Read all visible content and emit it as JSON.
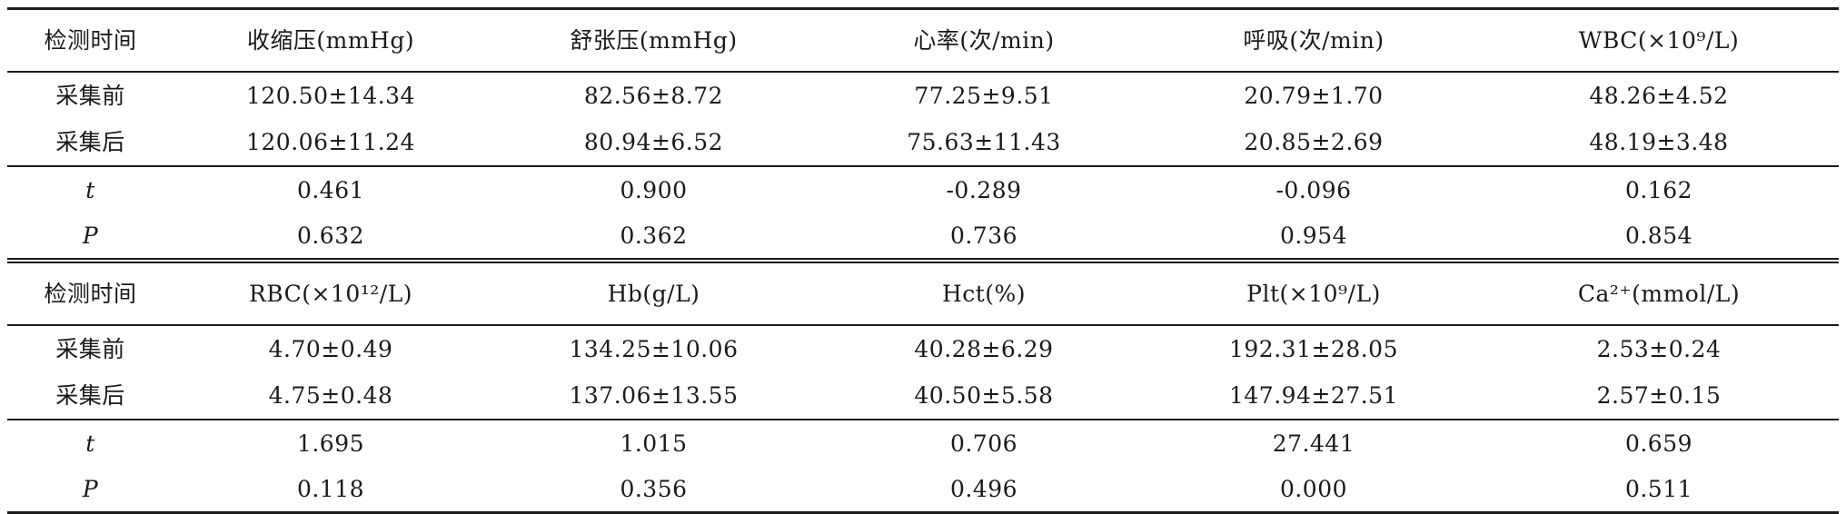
{
  "table": {
    "section1": {
      "header": [
        "检测时间",
        "收缩压(mmHg)",
        "舒张压(mmHg)",
        "心率(次/min)",
        "呼吸(次/min)",
        "WBC(×10⁹/L)"
      ],
      "rows": [
        [
          "采集前",
          "120.50±14.34",
          "82.56±8.72",
          "77.25±9.51",
          "20.79±1.70",
          "48.26±4.52"
        ],
        [
          "采集后",
          "120.06±11.24",
          "80.94±6.52",
          "75.63±11.43",
          "20.85±2.69",
          "48.19±3.48"
        ]
      ],
      "stats": [
        [
          "t",
          "0.461",
          "0.900",
          "-0.289",
          "-0.096",
          "0.162"
        ],
        [
          "P",
          "0.632",
          "0.362",
          "0.736",
          "0.954",
          "0.854"
        ]
      ]
    },
    "section2": {
      "header": [
        "检测时间",
        "RBC(×10¹²/L)",
        "Hb(g/L)",
        "Hct(%)",
        "Plt(×10⁹/L)",
        "Ca²⁺(mmol/L)"
      ],
      "rows": [
        [
          "采集前",
          "4.70±0.49",
          "134.25±10.06",
          "40.28±6.29",
          "192.31±28.05",
          "2.53±0.24"
        ],
        [
          "采集后",
          "4.75±0.48",
          "137.06±13.55",
          "40.50±5.58",
          "147.94±27.51",
          "2.57±0.15"
        ]
      ],
      "stats": [
        [
          "t",
          "1.695",
          "1.015",
          "0.706",
          "27.441",
          "0.659"
        ],
        [
          "P",
          "0.118",
          "0.356",
          "0.496",
          "0.000",
          "0.511"
        ]
      ]
    }
  }
}
